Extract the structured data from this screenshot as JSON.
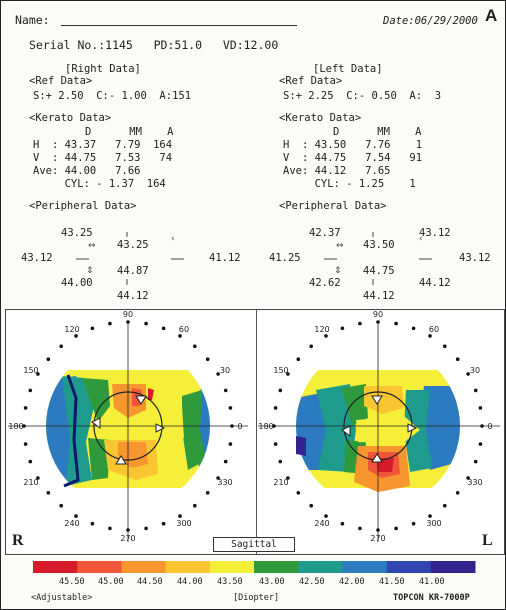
{
  "header": {
    "name_label": "Name:",
    "date": "Date:06/29/2000",
    "panel_letter": "A"
  },
  "serial": "Serial No.:1145   PD:51.0   VD:12.00",
  "right": {
    "title": "[Right Data]",
    "ref_title": "<Ref Data>",
    "ref": "S:+ 2.50  C:- 1.00  A:151",
    "kerato_title": "<Kerato Data>",
    "kerato_header": "D      MM    A",
    "kerato_rows": [
      "H  : 43.37   7.79  164",
      "V  : 44.75   7.53   74",
      "Ave: 44.00   7.66",
      "     CYL: - 1.37  164"
    ],
    "peripheral_title": "<Peripheral Data>",
    "peripheral": {
      "top_left": "43.25",
      "top_center": "43.25",
      "left": "43.12",
      "right": "41.12",
      "center_bottom": "44.87",
      "bottom_left": "44.00",
      "bottom": "44.12"
    }
  },
  "left": {
    "title": "[Left Data]",
    "ref_title": "<Ref Data>",
    "ref": "S:+ 2.25  C:- 0.50  A:  3",
    "kerato_title": "<Kerato Data>",
    "kerato_header": "D      MM    A",
    "kerato_rows": [
      "H  : 43.50   7.76    1",
      "V  : 44.75   7.54   91",
      "Ave: 44.12   7.65",
      "     CYL: - 1.25    1"
    ],
    "peripheral_title": "<Peripheral Data>",
    "peripheral": {
      "top_left": "42.37",
      "top_center": "43.50",
      "top_right": "43.12",
      "left": "41.25",
      "right": "43.12",
      "center_bottom": "44.75",
      "bottom_left": "42.62",
      "bottom_right": "44.12",
      "bottom": "44.12"
    }
  },
  "maps": {
    "eye_right": "R",
    "eye_left": "L",
    "mode": "Sagittal",
    "angles": [
      "90",
      "60",
      "30",
      "0",
      "330",
      "300",
      "270",
      "240",
      "210",
      "180",
      "150",
      "120"
    ]
  },
  "scale": {
    "values": [
      "45.50",
      "45.00",
      "44.50",
      "44.00",
      "43.50",
      "43.00",
      "42.50",
      "42.00",
      "41.50",
      "41.00"
    ],
    "colors": [
      "#d81b2a",
      "#f0553a",
      "#f7962e",
      "#f9c530",
      "#f5ef3a",
      "#2f9a3c",
      "#1f9b8e",
      "#2c7bc0",
      "#3046b0",
      "#33238f"
    ]
  },
  "footer": {
    "adjustable": "<Adjustable>",
    "unit": "[Diopter]",
    "device": "TOPCON KR-7000P"
  }
}
